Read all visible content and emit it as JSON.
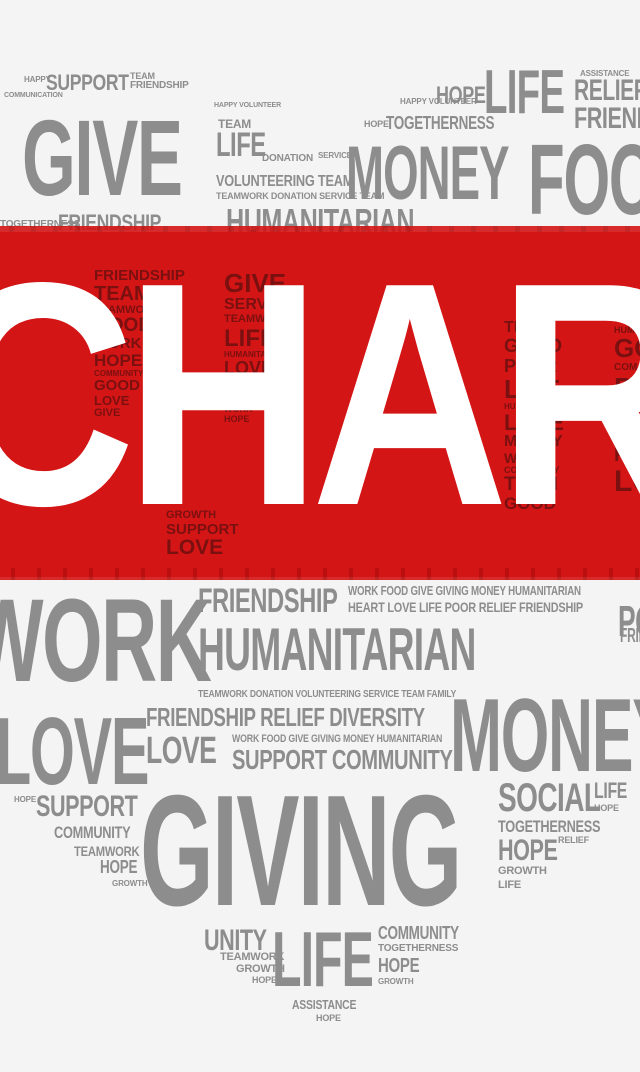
{
  "headline": "CHARITY",
  "colors": {
    "background": "#f4f4f4",
    "red": "#d41515",
    "dark_red_text": "#7a1010",
    "gray_text": "#8d8d8d",
    "headline_text": "#ffffff"
  },
  "words": {
    "give": "GIVE",
    "money": "MONEY",
    "money2": "MONEY",
    "food": "FOOD",
    "life": "LIFE",
    "life2": "LIFE",
    "support": "SUPPORT",
    "support2": "SUPPORT",
    "friendship": "FRIENDSHIP",
    "friendship2": "FRIENDSHIP",
    "friendship3": "FRIENDSHIP",
    "hope": "HOPE",
    "hope2": "HOPE",
    "hope3": "HOPE",
    "relief": "RELIEF",
    "togetherness": "TOGETHERNESS",
    "togetherness2": "TOGETHERNESS",
    "humanitarian": "HUMANITARIAN",
    "humanitarian2": "HUMANITARIAN",
    "volunteering_team": "VOLUNTEERING TEAM",
    "team": "TEAM",
    "teamwork_donation": "TEAMWORK DONATION SERVICE TEAM",
    "work": "WORK",
    "love": "LOVE",
    "love2": "LOVE",
    "giving": "GIVING",
    "social": "SOCIAL",
    "community": "COMMUNITY",
    "community2": "COMMUNITY",
    "teamwork": "TEAMWORK",
    "unity": "UNITY",
    "assistance": "ASSISTANCE",
    "growth": "GROWTH",
    "friendship_relief_diversity": "FRIENDSHIP RELIEF DIVERSITY",
    "support_community": "SUPPORT COMMUNITY",
    "work_food_line": "WORK FOOD GIVE GIVING MONEY HUMANITARIAN",
    "heart_love_line": "HEART LOVE LIFE POOR RELIEF FRIENDSHIP",
    "teamwork_line": "TEAMWORK DONATION VOLUNTEERING SERVICE TEAM FAMILY",
    "work_food_line2": "WORK FOOD GIVE GIVING MONEY HUMANITARIAN",
    "small_top_left": "HAPPY",
    "small_tl2": "COMMUNICATION",
    "small_top_right": "ASSISTANCE",
    "happy_volunteer": "HAPPY VOLUNTEER",
    "friendship_small": "FRIENDSHIP",
    "poor": "POOR",
    "heart": "HEART",
    "team_good": "TEAM GOOD",
    "life3": "LIFE",
    "donation": "DONATION",
    "service": "SERVICE",
    "family": "FAMILY",
    "good": "GOOD",
    "work2": "WORK",
    "together_small": "TOGETHERNESS",
    "hope_small": "HOPE",
    "growth_small": "GROWTH",
    "life_small": "LIFE",
    "relief_small": "RELIEF",
    "hope_small2": "HOPE",
    "community_small": "COMMUNITY",
    "teamwork_small": "TEAMWORK"
  },
  "red_column_left": [
    "FRIENDSHIP",
    "TEAM",
    "TEAMWORK",
    "GOOD",
    "WORK",
    "HOPE",
    "COMMUNITY",
    "GOOD",
    "LOVE",
    "GIVE"
  ],
  "red_column_mid": [
    "GIVE",
    "SERVICE",
    "TEAMWORK",
    "LIFE",
    "HUMANITARIAN",
    "LOVE",
    "TEAM",
    "GOOD",
    "WORK",
    "HOPE"
  ],
  "red_column_right": [
    "TEAM",
    "GOOD",
    "POOR",
    "LIFE",
    "HUMANITARIAN",
    "LOVE",
    "MONEY",
    "WORK",
    "COMMUNITY",
    "TEAM",
    "GOOD"
  ],
  "red_column_far_right": [
    "HUMANITARIAN",
    "GO",
    "COM",
    "PO",
    "TOG",
    "MI",
    "FRI",
    "LO"
  ],
  "red_bottom_mid": [
    "GROWTH",
    "SUPPORT",
    "LOVE"
  ]
}
